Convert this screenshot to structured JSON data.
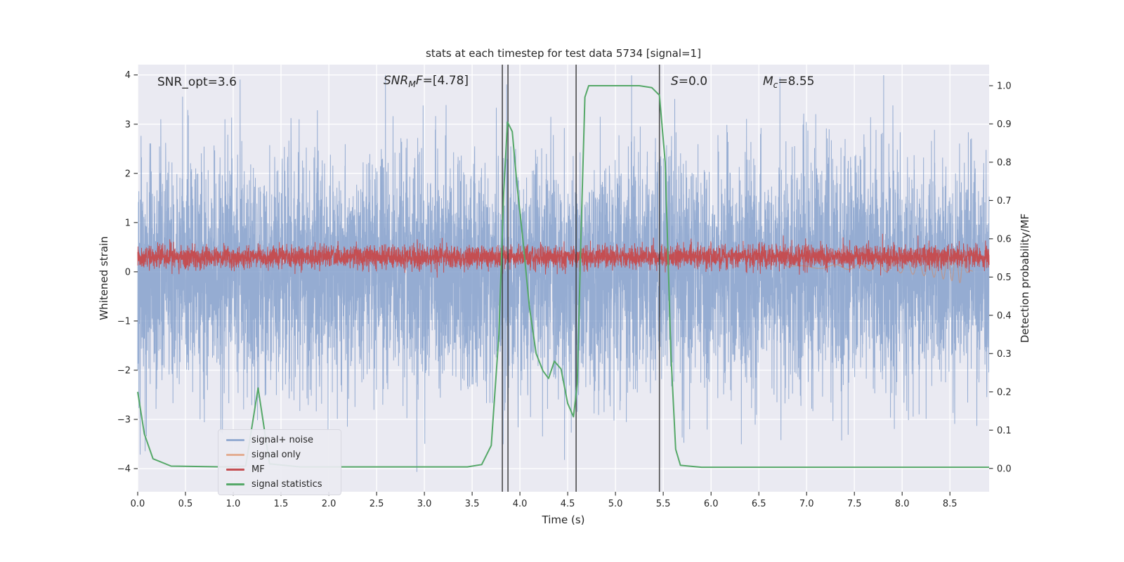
{
  "chart_data": {
    "type": "line",
    "title": "stats at each timestep for test data 5734 [signal=1]",
    "xlabel": "Time (s)",
    "ylabel_left": "Whitened strain",
    "ylabel_right": "Detection probability/MF",
    "xlim": [
      0,
      8.91
    ],
    "ylim_left": [
      -4.47,
      4.21
    ],
    "ylim_right": [
      -0.061,
      1.055
    ],
    "x_ticks": [
      0.0,
      0.5,
      1.0,
      1.5,
      2.0,
      2.5,
      3.0,
      3.5,
      4.0,
      4.5,
      5.0,
      5.5,
      6.0,
      6.5,
      7.0,
      7.5,
      8.0,
      8.5
    ],
    "y_ticks_left": [
      -4,
      -3,
      -2,
      -1,
      0,
      1,
      2,
      3,
      4
    ],
    "y_ticks_right": [
      0.0,
      0.1,
      0.2,
      0.3,
      0.4,
      0.5,
      0.6,
      0.7,
      0.8,
      0.9,
      1.0
    ],
    "grid": true,
    "background": "#eaeaf2",
    "grid_color": "#ffffff",
    "text_color": "#262626",
    "legend_position": "lower left",
    "annotations": {
      "snr_opt": {
        "text": "SNR_opt=3.6",
        "x": 0.2,
        "y": 3.85
      },
      "snr_mf": {
        "base": "SNR",
        "sub": "M",
        "after": "F",
        "value": "=[4.78]",
        "x": 2.57,
        "y": 3.85
      },
      "s": {
        "base": "S",
        "value": "=0.0",
        "x": 5.58,
        "y": 3.85
      },
      "mc": {
        "base": "M",
        "sub": "c",
        "value": "=8.55",
        "x": 6.55,
        "y": 3.85
      }
    },
    "vlines": {
      "color": "#3a3a3a",
      "x": [
        3.816,
        3.875,
        4.588,
        5.46
      ]
    },
    "series": [
      {
        "name": "signal+ noise",
        "color": "#7f9cc9",
        "opacity": 0.8,
        "kind": "gaussian-noise",
        "axis": "left",
        "mean": 0,
        "std": 1.12,
        "points": 7000,
        "clip": 4.25
      },
      {
        "name": "signal only",
        "color": "#dd8452",
        "opacity": 0.5,
        "kind": "chirp",
        "axis": "left",
        "center": 0.1,
        "t_start": 6.8,
        "t_merger": 8.62,
        "t_end": 8.74,
        "max_amplitude": 0.34
      },
      {
        "name": "MF",
        "color": "#c44e52",
        "opacity": 1,
        "kind": "gaussian-noise",
        "axis": "left",
        "mean": 0.3,
        "std": 0.115,
        "points": 6000,
        "clip_low": -0.12,
        "clip_high": 1.02
      },
      {
        "name": "signal statistics",
        "color": "#55a868",
        "opacity": 1,
        "kind": "keypoints",
        "axis": "right",
        "keypoints": [
          [
            0,
            0.2
          ],
          [
            0.07,
            0.09
          ],
          [
            0.16,
            0.025
          ],
          [
            0.35,
            0.006
          ],
          [
            0.9,
            0.004
          ],
          [
            1.13,
            0.006
          ],
          [
            1.26,
            0.21
          ],
          [
            1.38,
            0.012
          ],
          [
            1.7,
            0.004
          ],
          [
            3.45,
            0.004
          ],
          [
            3.6,
            0.01
          ],
          [
            3.7,
            0.06
          ],
          [
            3.78,
            0.35
          ],
          [
            3.83,
            0.72
          ],
          [
            3.87,
            0.905
          ],
          [
            3.92,
            0.88
          ],
          [
            3.97,
            0.74
          ],
          [
            4.03,
            0.6
          ],
          [
            4.1,
            0.42
          ],
          [
            4.17,
            0.3
          ],
          [
            4.24,
            0.255
          ],
          [
            4.3,
            0.235
          ],
          [
            4.36,
            0.28
          ],
          [
            4.43,
            0.26
          ],
          [
            4.5,
            0.17
          ],
          [
            4.56,
            0.135
          ],
          [
            4.6,
            0.22
          ],
          [
            4.64,
            0.62
          ],
          [
            4.68,
            0.97
          ],
          [
            4.72,
            1.0
          ],
          [
            5.0,
            1.0
          ],
          [
            5.25,
            1.0
          ],
          [
            5.38,
            0.995
          ],
          [
            5.46,
            0.975
          ],
          [
            5.52,
            0.8
          ],
          [
            5.58,
            0.3
          ],
          [
            5.63,
            0.05
          ],
          [
            5.68,
            0.008
          ],
          [
            5.9,
            0.003
          ],
          [
            8.91,
            0.003
          ]
        ]
      }
    ]
  }
}
